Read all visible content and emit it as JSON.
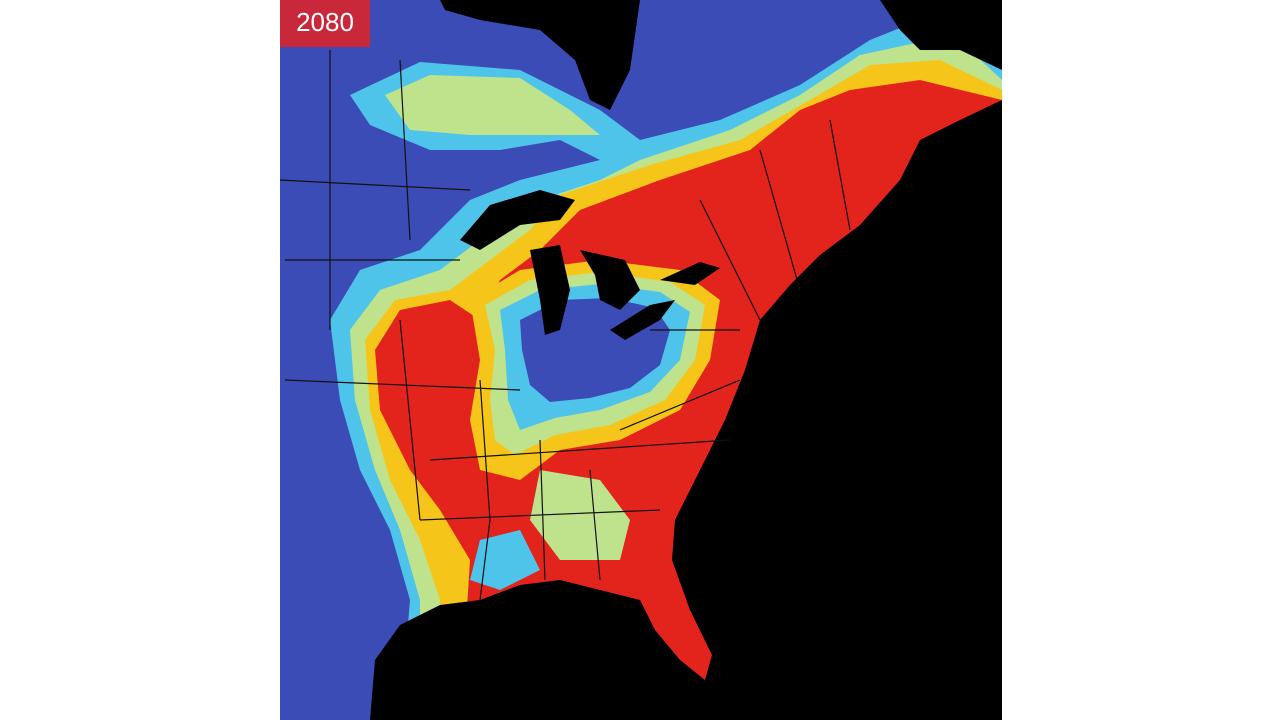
{
  "label": "2080"
}
